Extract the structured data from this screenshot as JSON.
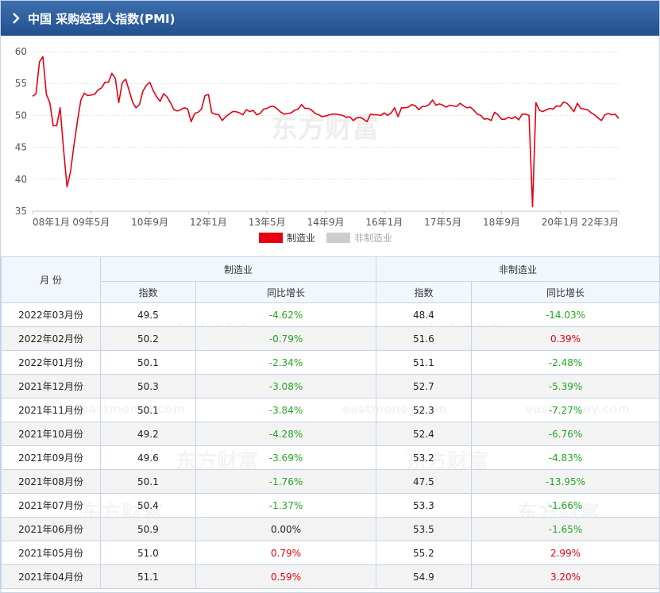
{
  "header": {
    "title": "中国 采购经理人指数(PMI)"
  },
  "watermark": {
    "logo_text": "东方财富",
    "site": "eastmoney.com"
  },
  "legend": [
    {
      "name": "制造业",
      "color": "#e60012"
    },
    {
      "name": "非制造业",
      "color": "#cccccc"
    }
  ],
  "chart_data": {
    "type": "line",
    "ylim": [
      35,
      60
    ],
    "yticks": [
      35,
      40,
      45,
      50,
      55,
      60
    ],
    "xticks": [
      "08年1月",
      "09年5月",
      "10年9月",
      "12年1月",
      "13年5月",
      "14年9月",
      "16年1月",
      "17年5月",
      "18年9月",
      "20年1月",
      "22年3月"
    ],
    "legend_position": "bottom-center",
    "grid": true,
    "series": [
      {
        "name": "制造业",
        "color": "#e60012",
        "x_start": "2008-01",
        "values": [
          53.0,
          53.4,
          58.4,
          59.2,
          53.3,
          52.0,
          48.4,
          48.4,
          51.2,
          44.6,
          38.8,
          41.2,
          45.3,
          49.0,
          52.4,
          53.5,
          53.1,
          53.2,
          53.3,
          54.0,
          54.3,
          55.2,
          55.2,
          56.6,
          55.8,
          52.0,
          55.1,
          55.7,
          53.9,
          52.1,
          51.2,
          51.7,
          53.8,
          54.7,
          55.2,
          53.9,
          52.9,
          52.2,
          53.4,
          52.9,
          52.0,
          50.9,
          50.7,
          50.9,
          51.2,
          51.0,
          49.0,
          50.3,
          50.5,
          51.0,
          53.1,
          53.3,
          50.4,
          50.2,
          50.1,
          49.2,
          49.8,
          50.2,
          50.6,
          50.6,
          50.4,
          50.1,
          50.9,
          50.6,
          50.8,
          50.1,
          50.3,
          51.0,
          51.1,
          51.4,
          51.4,
          51.0,
          50.5,
          50.2,
          50.3,
          50.4,
          50.8,
          51.0,
          51.7,
          51.1,
          51.1,
          50.8,
          50.3,
          50.1,
          49.8,
          49.9,
          50.1,
          50.2,
          50.2,
          50.1,
          50.0,
          49.7,
          49.8,
          49.2,
          49.6,
          49.7,
          49.4,
          49.0,
          50.2,
          50.1,
          50.1,
          50.0,
          50.4,
          50.0,
          50.4,
          51.2,
          49.8,
          51.2,
          51.2,
          51.3,
          51.7,
          51.5,
          50.9,
          51.4,
          51.4,
          51.7,
          52.4,
          51.6,
          51.8,
          51.6,
          51.3,
          51.6,
          51.5,
          51.4,
          51.9,
          51.5,
          51.2,
          51.3,
          50.8,
          50.2,
          50.0,
          49.4,
          49.5,
          49.2,
          50.5,
          50.1,
          49.4,
          49.4,
          49.7,
          49.5,
          49.8,
          49.3,
          50.2,
          50.2,
          50.0,
          35.7,
          52.0,
          50.8,
          50.6,
          50.9,
          51.1,
          51.0,
          51.5,
          51.4,
          52.1,
          51.9,
          51.3,
          50.6,
          51.9,
          51.1,
          51.0,
          50.9,
          50.4,
          50.1,
          49.6,
          49.2,
          50.1,
          50.3,
          50.1,
          50.2,
          49.5
        ]
      }
    ]
  },
  "table": {
    "month_header": "月  份",
    "groups": [
      "制造业",
      "非制造业"
    ],
    "sub_headers": [
      "指数",
      "同比增长",
      "指数",
      "同比增长"
    ],
    "rows": [
      {
        "month": "2022年03月份",
        "mfg": "49.5",
        "mfg_chg": "-4.62%",
        "non": "48.4",
        "non_chg": "-14.03%"
      },
      {
        "month": "2022年02月份",
        "mfg": "50.2",
        "mfg_chg": "-0.79%",
        "non": "51.6",
        "non_chg": "0.39%"
      },
      {
        "month": "2022年01月份",
        "mfg": "50.1",
        "mfg_chg": "-2.34%",
        "non": "51.1",
        "non_chg": "-2.48%"
      },
      {
        "month": "2021年12月份",
        "mfg": "50.3",
        "mfg_chg": "-3.08%",
        "non": "52.7",
        "non_chg": "-5.39%"
      },
      {
        "month": "2021年11月份",
        "mfg": "50.1",
        "mfg_chg": "-3.84%",
        "non": "52.3",
        "non_chg": "-7.27%"
      },
      {
        "month": "2021年10月份",
        "mfg": "49.2",
        "mfg_chg": "-4.28%",
        "non": "52.4",
        "non_chg": "-6.76%"
      },
      {
        "month": "2021年09月份",
        "mfg": "49.6",
        "mfg_chg": "-3.69%",
        "non": "53.2",
        "non_chg": "-4.83%"
      },
      {
        "month": "2021年08月份",
        "mfg": "50.1",
        "mfg_chg": "-1.76%",
        "non": "47.5",
        "non_chg": "-13.95%"
      },
      {
        "month": "2021年07月份",
        "mfg": "50.4",
        "mfg_chg": "-1.37%",
        "non": "53.3",
        "non_chg": "-1.66%"
      },
      {
        "month": "2021年06月份",
        "mfg": "50.9",
        "mfg_chg": "0.00%",
        "non": "53.5",
        "non_chg": "-1.65%"
      },
      {
        "month": "2021年05月份",
        "mfg": "51.0",
        "mfg_chg": "0.79%",
        "non": "55.2",
        "non_chg": "2.99%"
      },
      {
        "month": "2021年04月份",
        "mfg": "51.1",
        "mfg_chg": "0.59%",
        "non": "54.9",
        "non_chg": "3.20%"
      }
    ]
  }
}
